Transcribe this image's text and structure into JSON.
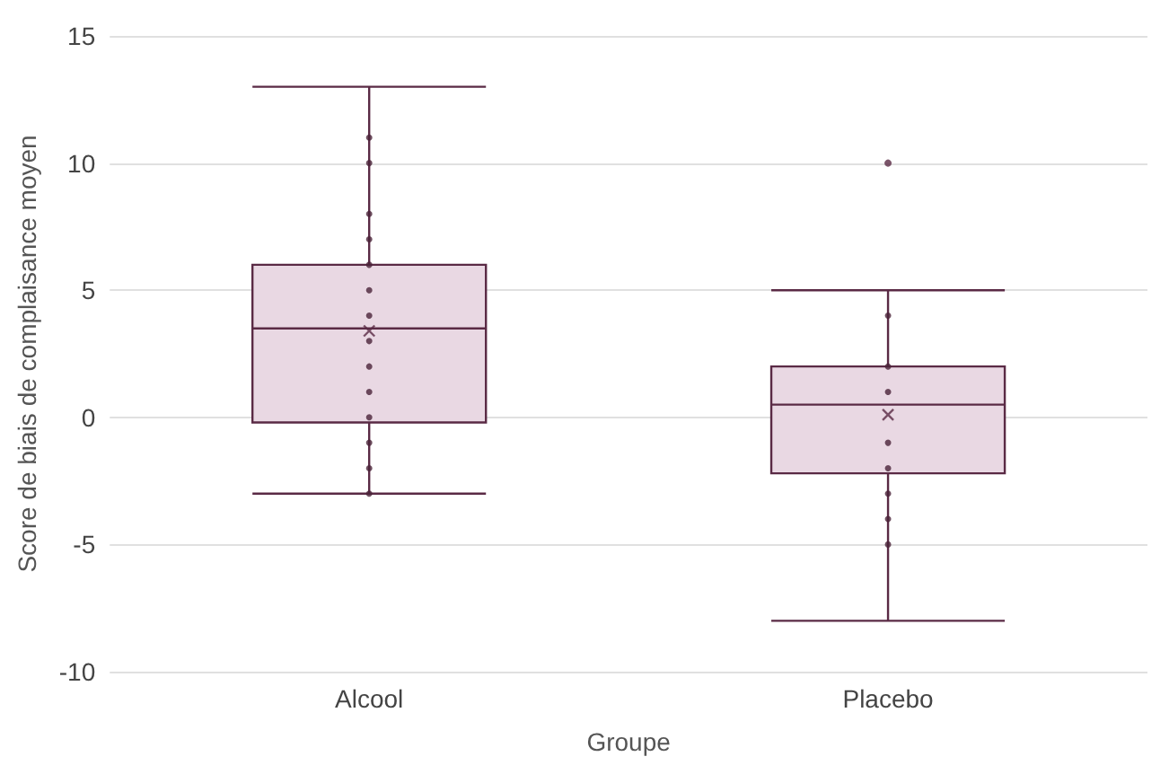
{
  "chart_data": {
    "type": "box",
    "xlabel": "Groupe",
    "ylabel": "Score de biais de complaisance moyen",
    "categories": [
      "Alcool",
      "Placebo"
    ],
    "boxes": [
      {
        "low": -3,
        "q1": -0.2,
        "median": 3.5,
        "q3": 6,
        "high": 13,
        "mean": 3.4
      },
      {
        "low": -8,
        "q1": -2.2,
        "median": 0.5,
        "q3": 2,
        "high": 5,
        "mean": 0.1,
        "outliers": [
          10
        ]
      }
    ],
    "color": "#e9d8e3",
    "series": [
      {
        "type": "scatter",
        "color": "#4a2338",
        "x": [
          "Alcool",
          "Alcool",
          "Alcool",
          "Alcool",
          "Alcool",
          "Alcool",
          "Alcool",
          "Alcool",
          "Alcool",
          "Alcool",
          "Alcool",
          "Alcool",
          "Alcool",
          "Alcool",
          "Placebo",
          "Placebo",
          "Placebo",
          "Placebo",
          "Placebo",
          "Placebo",
          "Placebo",
          "Placebo"
        ],
        "values": [
          11,
          10,
          8,
          7,
          6,
          5,
          4,
          3,
          2,
          1,
          0,
          -1,
          -2,
          -3,
          4,
          2,
          1,
          -1,
          -2,
          -3,
          -4,
          -5
        ]
      }
    ],
    "ylim": [
      -10,
      15
    ],
    "yticks": [
      -10,
      -5,
      0,
      5,
      10,
      15
    ],
    "grid": "y"
  }
}
